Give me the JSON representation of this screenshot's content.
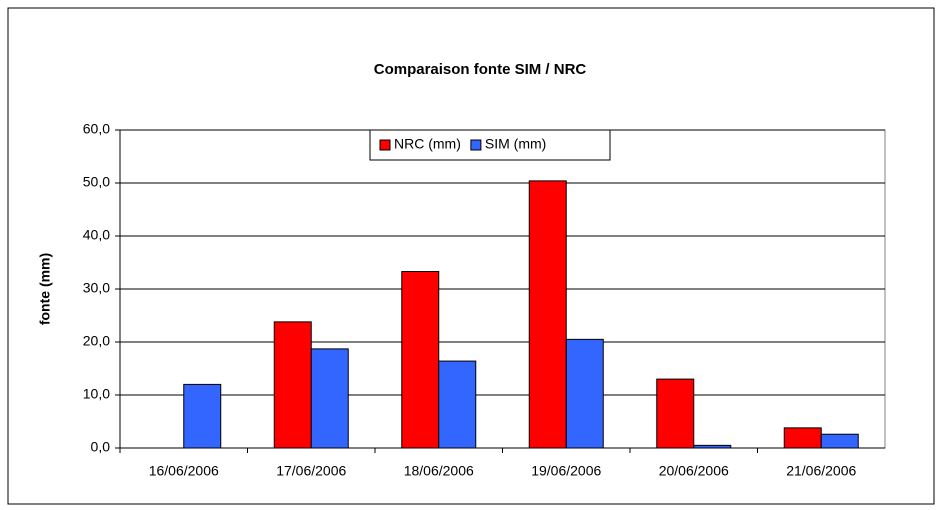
{
  "chart_data": {
    "type": "bar",
    "title": "Comparaison fonte SIM / NRC",
    "y_label": "fonte (mm)",
    "categories": [
      "16/06/2006",
      "17/06/2006",
      "18/06/2006",
      "19/06/2006",
      "20/06/2006",
      "21/06/2006"
    ],
    "series": [
      {
        "name": "NRC (mm)",
        "color": "#ff0000",
        "values": [
          0,
          23.8,
          33.3,
          50.4,
          13.0,
          3.8
        ]
      },
      {
        "name": "SIM (mm)",
        "color": "#3366ff",
        "values": [
          12.0,
          18.7,
          16.4,
          20.5,
          0.5,
          2.6
        ]
      }
    ],
    "ylim": [
      0,
      60
    ],
    "yticks": [
      {
        "value": 0,
        "label": "0,0"
      },
      {
        "value": 10,
        "label": "10,0"
      },
      {
        "value": 20,
        "label": "20,0"
      },
      {
        "value": 30,
        "label": "30,0"
      },
      {
        "value": 40,
        "label": "40,0"
      },
      {
        "value": 50,
        "label": "50,0"
      },
      {
        "value": 60,
        "label": "60,0"
      }
    ],
    "grid": true,
    "legend": "top"
  }
}
